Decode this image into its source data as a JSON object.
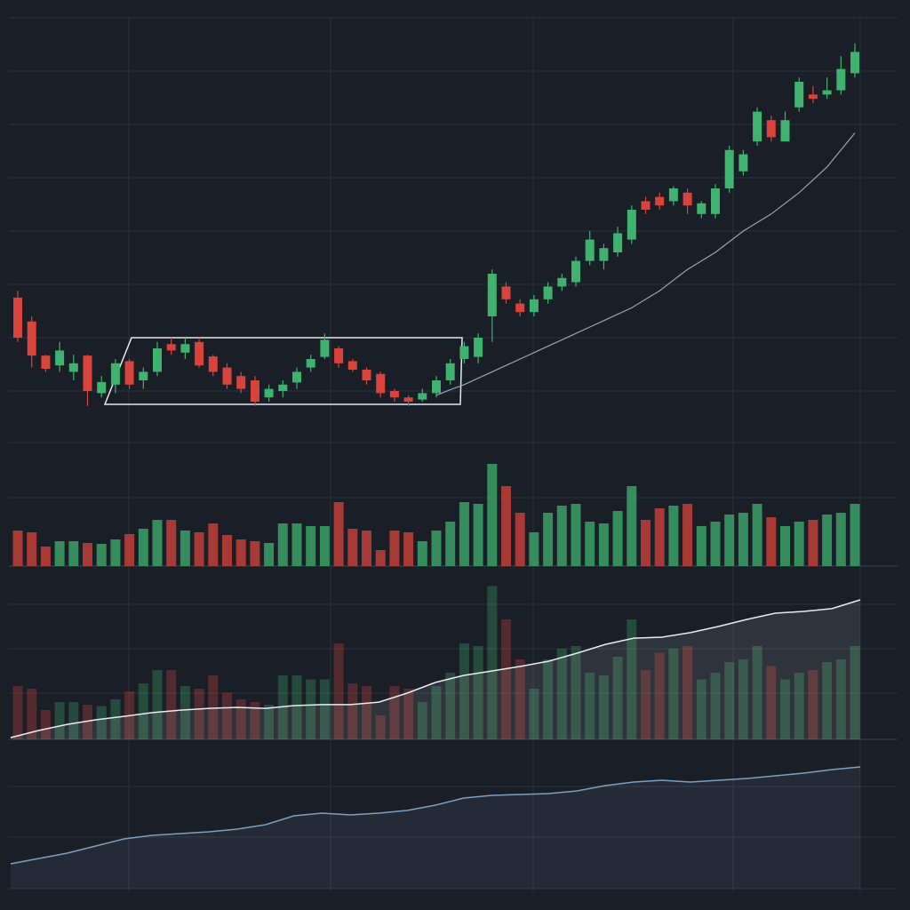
{
  "chart_data": [
    {
      "type": "candlestick",
      "ylim": [
        0,
        100
      ],
      "up_color": "#3fb26f",
      "down_color": "#d8443b",
      "open": [
        34.4,
        28.8,
        20.8,
        18.5,
        17,
        20.8,
        12,
        14,
        19.5,
        15,
        17,
        23.5,
        21.5,
        24,
        20.6,
        18,
        16,
        15,
        11,
        12.5,
        14.5,
        18,
        20.5,
        22.5,
        19.5,
        17.5,
        16.5,
        12.5,
        11,
        10.5,
        12,
        15,
        20,
        20.5,
        30,
        37,
        33,
        31,
        34,
        37,
        38,
        43,
        43,
        45,
        48,
        57,
        58,
        57,
        59,
        54,
        54,
        60,
        64,
        71,
        76,
        71,
        79,
        82,
        82,
        83,
        87
      ],
      "high": [
        36,
        30,
        21,
        24,
        21,
        21,
        16,
        20,
        20,
        18,
        24,
        25,
        25,
        25,
        21,
        19,
        17,
        16,
        14,
        15,
        18,
        21,
        26,
        23,
        20,
        18,
        17,
        13,
        11.5,
        13,
        16,
        20,
        24,
        26,
        41,
        38,
        34,
        35,
        38,
        40,
        44,
        50,
        47,
        51,
        56,
        58,
        59,
        60.5,
        60,
        57,
        61,
        70,
        69,
        79,
        77,
        78,
        86,
        84,
        86,
        91,
        94
      ],
      "low": [
        24,
        18,
        17,
        17,
        15,
        9,
        11,
        12,
        13,
        13,
        16,
        21,
        20,
        18,
        16,
        13,
        12,
        9,
        10,
        11,
        13,
        17,
        20,
        18,
        17,
        14,
        11,
        10,
        9,
        10,
        11,
        14,
        19,
        19,
        24,
        33,
        30,
        30,
        33,
        36,
        37,
        42,
        41,
        44,
        47,
        54,
        55,
        56,
        54,
        53,
        53,
        59,
        63,
        70,
        71,
        71,
        78,
        80,
        81,
        82,
        86
      ],
      "close": [
        25,
        20.8,
        17.7,
        22,
        19,
        12.5,
        14.6,
        19,
        14,
        17,
        22.5,
        22,
        23.5,
        18.5,
        17,
        14,
        13,
        10,
        13,
        14,
        17,
        20,
        24.5,
        19,
        17.5,
        15,
        12,
        11,
        10,
        12,
        15,
        19,
        23,
        25,
        40,
        34,
        31,
        34,
        37,
        39,
        43,
        48,
        46,
        49.5,
        55,
        55,
        56,
        60,
        56,
        56.5,
        60,
        69,
        68,
        78,
        72,
        76,
        85,
        81,
        83,
        88,
        92
      ],
      "line": {
        "color": "#9aa3ad",
        "values": [
          null,
          null,
          null,
          null,
          null,
          null,
          null,
          null,
          null,
          null,
          null,
          null,
          null,
          null,
          null,
          null,
          null,
          null,
          null,
          null,
          null,
          null,
          null,
          null,
          null,
          null,
          null,
          null,
          null,
          null,
          11.5,
          12.8,
          14,
          15.5,
          17,
          18.5,
          20,
          21.5,
          23,
          24.5,
          26,
          27.5,
          29,
          30.5,
          32,
          34,
          36,
          38.5,
          41,
          43,
          45,
          47.5,
          50,
          52,
          54,
          56.5,
          59,
          62,
          65,
          69,
          73
        ]
      }
    },
    {
      "type": "bar",
      "ylim": [
        0,
        120
      ],
      "values": [
        40,
        38,
        22,
        28,
        28,
        26,
        25,
        30,
        36,
        42,
        52,
        52,
        40,
        38,
        48,
        35,
        30,
        28,
        26,
        48,
        48,
        45,
        45,
        72,
        42,
        40,
        18,
        40,
        38,
        28,
        40,
        50,
        72,
        70,
        115,
        90,
        60,
        38,
        60,
        68,
        70,
        50,
        48,
        62,
        90,
        52,
        65,
        68,
        70,
        45,
        50,
        58,
        60,
        70,
        55,
        45,
        50,
        52,
        58,
        60,
        70
      ]
    },
    {
      "type": "area",
      "ylim": [
        0,
        100
      ],
      "color": "#e8ecf0",
      "values": [
        1.1,
        5.6,
        9.4,
        12.2,
        14.4,
        16.7,
        18.3,
        19.4,
        20,
        19.4,
        21.1,
        21.7,
        21.7,
        23.3,
        28.9,
        35.6,
        40,
        42.8,
        45.6,
        48.9,
        53.9,
        59.4,
        63.3,
        63.9,
        66.7,
        70.6,
        75,
        78.9,
        80,
        81.7,
        87.2
      ]
    },
    {
      "type": "area",
      "ylim": [
        0,
        100
      ],
      "color": "#7f9fbf",
      "values": [
        18.7,
        22.7,
        26.7,
        32,
        37.3,
        40,
        41.3,
        42.7,
        44.7,
        48,
        54.7,
        56.7,
        55.3,
        56.7,
        58.7,
        62.7,
        68,
        70,
        70.7,
        71.3,
        73.3,
        77.3,
        80,
        81.3,
        80,
        81.3,
        82.7,
        84.7,
        86.7,
        89.3,
        91.3
      ]
    }
  ]
}
